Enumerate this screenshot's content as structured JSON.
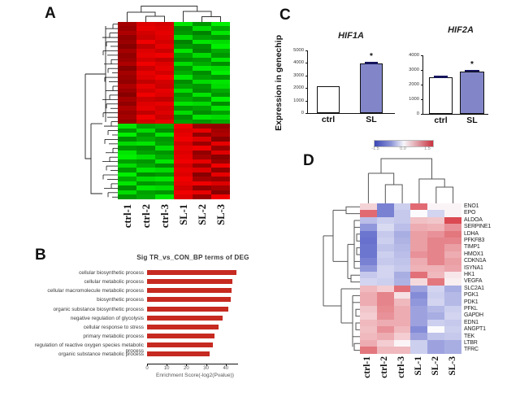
{
  "panel_labels": {
    "a": "A",
    "b": "B",
    "c": "C",
    "d": "D"
  },
  "chart_data": [
    {
      "panel": "A",
      "type": "heatmap",
      "title": "",
      "columns": [
        "ctrl-1",
        "ctrl-2",
        "ctrl-3",
        "SL-1",
        "SL-2",
        "SL-3"
      ],
      "palette": {
        "positive_max": "#ff1e00",
        "negative_max": "#00dd00",
        "low": "#000000"
      },
      "legend_note": "positive values = red (higher in ctrl cluster), negative = green",
      "rows": [
        [
          0.55,
          0.85,
          0.8,
          -0.9,
          -0.5,
          -0.95
        ],
        [
          0.5,
          0.9,
          0.85,
          -0.45,
          -0.85,
          -0.6
        ],
        [
          0.6,
          0.8,
          0.9,
          -0.5,
          -0.4,
          -0.9
        ],
        [
          0.45,
          0.75,
          0.85,
          -0.85,
          -0.55,
          -0.5
        ],
        [
          0.5,
          0.95,
          0.8,
          -0.4,
          -0.9,
          -0.85
        ],
        [
          0.4,
          0.7,
          0.9,
          -0.5,
          -0.45,
          -0.95
        ],
        [
          0.55,
          0.85,
          0.75,
          -0.9,
          -0.4,
          -0.6
        ],
        [
          0.45,
          0.9,
          0.95,
          -0.55,
          -0.85,
          -0.5
        ],
        [
          0.5,
          0.8,
          0.7,
          -0.45,
          -0.5,
          -0.9
        ],
        [
          0.6,
          0.95,
          0.85,
          -0.85,
          -0.6,
          -0.45
        ],
        [
          0.4,
          0.75,
          0.9,
          -0.5,
          -0.9,
          -0.85
        ],
        [
          0.55,
          0.9,
          0.8,
          -0.6,
          -0.45,
          -0.95
        ],
        [
          0.5,
          0.85,
          0.95,
          -0.9,
          -0.55,
          -0.5
        ],
        [
          0.45,
          0.7,
          0.8,
          -0.45,
          -0.85,
          -0.9
        ],
        [
          0.6,
          0.9,
          0.75,
          -0.55,
          -0.5,
          -0.85
        ],
        [
          0.5,
          0.8,
          0.9,
          -0.85,
          -0.45,
          -0.6
        ],
        [
          0.4,
          0.95,
          0.85,
          -0.5,
          -0.9,
          -0.5
        ],
        [
          0.55,
          0.75,
          0.7,
          -0.6,
          -0.5,
          -0.95
        ],
        [
          0.45,
          0.85,
          0.9,
          -0.9,
          -0.85,
          -0.45
        ],
        [
          0.6,
          0.9,
          0.8,
          -0.5,
          -0.55,
          -0.9
        ],
        [
          0.5,
          0.7,
          0.85,
          -0.85,
          -0.45,
          -0.55
        ],
        [
          0.55,
          0.95,
          0.75,
          -0.45,
          -0.9,
          -0.85
        ],
        [
          0.45,
          0.8,
          0.9,
          -0.55,
          -0.5,
          -0.6
        ],
        [
          -0.9,
          -0.55,
          -0.6,
          0.95,
          0.5,
          0.45
        ],
        [
          -0.5,
          -0.85,
          -0.45,
          0.85,
          0.9,
          0.55
        ],
        [
          -0.95,
          -0.5,
          -0.9,
          0.9,
          0.45,
          0.6
        ],
        [
          -0.45,
          -0.6,
          -0.5,
          0.95,
          0.85,
          0.4
        ],
        [
          -0.85,
          -0.9,
          -0.55,
          0.8,
          0.5,
          0.9
        ],
        [
          -0.5,
          -0.45,
          -0.85,
          0.9,
          0.95,
          0.5
        ],
        [
          -0.9,
          -0.55,
          -0.5,
          0.85,
          0.45,
          0.85
        ],
        [
          -0.95,
          -0.85,
          -0.6,
          0.9,
          0.55,
          0.4
        ],
        [
          -0.55,
          -0.5,
          -0.9,
          0.95,
          0.9,
          0.5
        ],
        [
          -0.85,
          -0.6,
          -0.45,
          0.8,
          0.5,
          0.95
        ],
        [
          -0.5,
          -0.9,
          -0.85,
          0.9,
          0.85,
          0.45
        ],
        [
          -0.95,
          -0.45,
          -0.5,
          0.85,
          0.4,
          0.9
        ],
        [
          -0.6,
          -0.85,
          -0.9,
          0.95,
          0.55,
          0.5
        ],
        [
          -0.9,
          -0.5,
          -0.55,
          0.9,
          0.95,
          0.85
        ],
        [
          -0.45,
          -0.9,
          -0.85,
          0.8,
          0.45,
          0.55
        ],
        [
          -0.85,
          -0.55,
          -0.5,
          0.95,
          0.9,
          0.4
        ],
        [
          -0.5,
          -0.6,
          -0.9,
          0.85,
          0.5,
          0.95
        ]
      ]
    },
    {
      "panel": "B",
      "type": "bar",
      "title": "Sig TR_vs_CON_BP terms of DEG",
      "categories": [
        "cellular biosynthetic process",
        "cellular metabolic process",
        "cellular macromolecule metabolic process",
        "biosynthetic process",
        "organic substance biosynthetic process",
        "negative regulation of glycolysis",
        "cellular response to stress",
        "primary metabolic process",
        "regulation of reactive oxygen species metabolic process",
        "organic substance metabolic process"
      ],
      "values": [
        45.5,
        43.5,
        43,
        42.5,
        41.5,
        38.5,
        36.5,
        34.5,
        33.5,
        32
      ],
      "xlabel": "Enrichment Score(-log2(Pvalue))",
      "xticks": [
        0,
        10,
        20,
        30,
        40
      ],
      "xlim": [
        0,
        48
      ],
      "bar_color": "#c62a21",
      "orientation": "horizontal"
    },
    {
      "panel": "C-left",
      "type": "bar",
      "title": "HIF1A",
      "ylabel": "Expression in genechip",
      "categories": [
        "ctrl",
        "SL"
      ],
      "values": [
        2150,
        3950
      ],
      "errors": [
        0,
        120
      ],
      "sig_labels": [
        "",
        "*"
      ],
      "yticks": [
        0,
        1000,
        2000,
        3000,
        4000,
        5000
      ],
      "ylim": [
        0,
        5000
      ],
      "bar_colors": [
        "#ffffff",
        "#8286c9"
      ]
    },
    {
      "panel": "C-right",
      "type": "bar",
      "title": "HIF2A",
      "categories": [
        "ctrl",
        "SL"
      ],
      "values": [
        2500,
        2900
      ],
      "errors": [
        60,
        80
      ],
      "sig_labels": [
        "",
        "*"
      ],
      "yticks": [
        0,
        1000,
        2000,
        3000,
        4000
      ],
      "ylim": [
        0,
        4000
      ],
      "bar_colors": [
        "#ffffff",
        "#8286c9"
      ]
    },
    {
      "panel": "D",
      "type": "heatmap",
      "columns": [
        "ctrl-1",
        "ctrl-2",
        "ctrl-3",
        "SL-1",
        "SL-2",
        "SL-3"
      ],
      "genes": [
        "ENO1",
        "EPO",
        "ALDOA",
        "SERPINE1",
        "LDHA",
        "PFKFB3",
        "TIMP1",
        "HMOX1",
        "CDKN1A",
        "ISYNA1",
        "HK1",
        "VEGFA",
        "SLC2A1",
        "PGK1",
        "PDK1",
        "PFKL",
        "GAPDH",
        "EDN1",
        "ANGPT1",
        "TEK",
        "LTBR",
        "TFRC"
      ],
      "colorbar_ticks": [
        "-1.5",
        "0.0",
        "1.5"
      ],
      "scale": [
        -1.5,
        1.5
      ],
      "palette": {
        "negative": "#4a55c4",
        "mid": "#fbfbfd",
        "positive": "#d7353f"
      },
      "rows": [
        [
          0.3,
          -1.1,
          -0.4,
          1.1,
          0.05,
          0.05
        ],
        [
          1.1,
          -1.1,
          -0.45,
          0.0,
          -0.35,
          0.05
        ],
        [
          -0.55,
          -0.4,
          -0.45,
          0.45,
          0.4,
          1.35
        ],
        [
          -0.9,
          -0.3,
          -0.55,
          0.6,
          0.55,
          0.8
        ],
        [
          -1.2,
          -0.45,
          -0.7,
          0.7,
          0.8,
          1.0
        ],
        [
          -1.25,
          -0.4,
          -0.65,
          0.7,
          0.9,
          0.9
        ],
        [
          -1.2,
          -0.5,
          -0.6,
          0.7,
          0.9,
          0.7
        ],
        [
          -1.2,
          -0.4,
          -0.55,
          0.8,
          0.9,
          0.6
        ],
        [
          -1.1,
          -0.45,
          -0.5,
          0.6,
          0.9,
          0.7
        ],
        [
          -0.9,
          -0.35,
          -0.45,
          0.55,
          0.55,
          0.65
        ],
        [
          -0.45,
          -0.35,
          -0.7,
          1.05,
          0.5,
          0.15
        ],
        [
          -0.35,
          -0.4,
          -0.65,
          0.25,
          1.0,
          0.1
        ],
        [
          0.5,
          0.35,
          1.05,
          -0.8,
          -0.35,
          -0.7
        ],
        [
          0.6,
          0.9,
          0.2,
          -1.0,
          -0.4,
          -0.6
        ],
        [
          0.6,
          0.9,
          0.5,
          -0.9,
          -0.35,
          -0.6
        ],
        [
          0.4,
          0.85,
          0.6,
          -0.8,
          -0.6,
          -0.4
        ],
        [
          0.35,
          0.8,
          0.6,
          -0.8,
          -0.7,
          -0.35
        ],
        [
          0.5,
          0.6,
          0.6,
          -0.8,
          -0.4,
          -0.45
        ],
        [
          0.45,
          0.8,
          0.5,
          -1.0,
          0.0,
          -0.4
        ],
        [
          0.5,
          0.6,
          0.35,
          -0.8,
          -0.5,
          -0.45
        ],
        [
          0.6,
          0.35,
          0.05,
          -0.4,
          -0.8,
          -0.7
        ],
        [
          1.0,
          0.5,
          0.5,
          -0.4,
          -0.8,
          -0.7
        ]
      ]
    }
  ]
}
